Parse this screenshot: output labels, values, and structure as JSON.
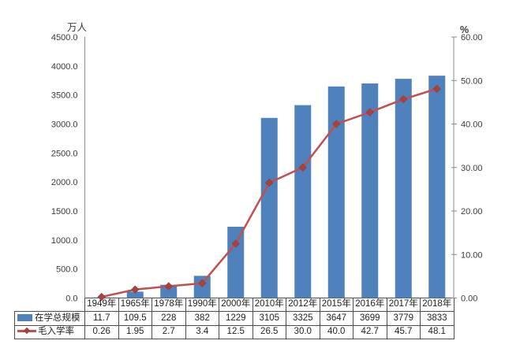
{
  "chart_data": {
    "type": "combo",
    "title": "",
    "categories": [
      "1949年",
      "1965年",
      "1978年",
      "1990年",
      "2000年",
      "2010年",
      "2012年",
      "2015年",
      "2016年",
      "2017年",
      "2018年"
    ],
    "series": [
      {
        "name": "在学总规模",
        "type": "bar",
        "axis": "left",
        "color": "#4f81bd",
        "values": [
          11.7,
          109.5,
          228,
          382,
          1229,
          3105,
          3325,
          3647,
          3699,
          3779,
          3833
        ],
        "display_values": [
          "11.7",
          "109.5",
          "228",
          "382",
          "1229",
          "3105",
          "3325",
          "3647",
          "3699",
          "3779",
          "3833"
        ]
      },
      {
        "name": "毛入学率",
        "type": "line",
        "axis": "right",
        "color": "#c0504d",
        "marker": "diamond",
        "marker_color": "#a8423f",
        "marker_edge_color": "#8e3a37",
        "values": [
          0.26,
          1.95,
          2.7,
          3.4,
          12.5,
          26.5,
          30.0,
          40.0,
          42.7,
          45.7,
          48.1
        ],
        "display_values": [
          "0.26",
          "1.95",
          "2.7",
          "3.4",
          "12.5",
          "26.5",
          "30.0",
          "40.0",
          "42.7",
          "45.7",
          "48.1"
        ]
      }
    ],
    "left_axis": {
      "label": "万人",
      "min": 0,
      "max": 4500,
      "step": 500,
      "tick_labels": [
        "4500.0",
        "4000.0",
        "3500.0",
        "3000.0",
        "2500.0",
        "2000.0",
        "1500.0",
        "1000.0",
        "500.0",
        "0.0"
      ]
    },
    "right_axis": {
      "label": "%",
      "min": 0,
      "max": 60,
      "step": 10,
      "tick_labels": [
        "60.00",
        "50.00",
        "40.00",
        "30.00",
        "20.00",
        "10.00",
        "0.00"
      ]
    },
    "grid": false,
    "legend_position": "data-table-left",
    "axis_line_color": "#8c8c8c",
    "table_border_color": "#4d4d4d"
  }
}
